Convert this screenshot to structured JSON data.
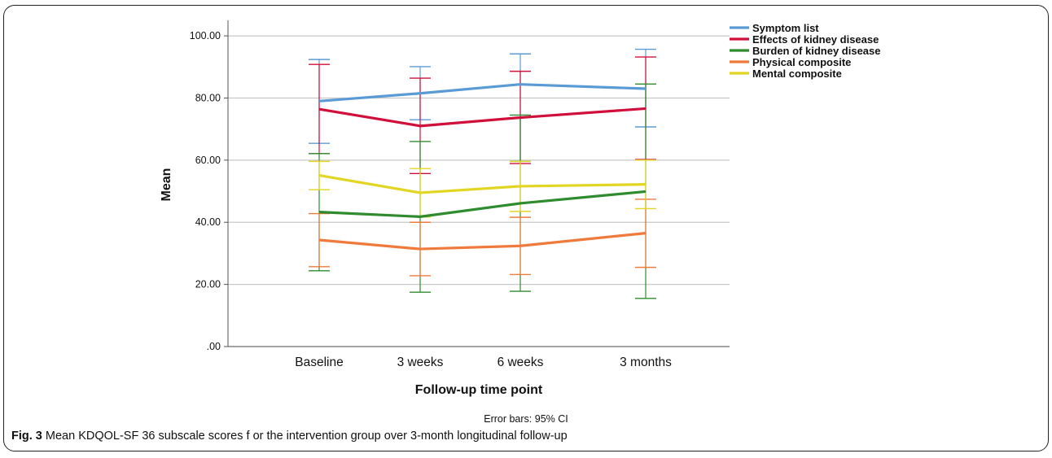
{
  "chart_data": {
    "type": "line",
    "categories": [
      "Baseline",
      "3 weeks",
      "6 weeks",
      "3 months"
    ],
    "xlabel": "Follow-up time point",
    "ylabel": "Mean",
    "ylim": [
      0,
      105
    ],
    "yticks": [
      0,
      20,
      40,
      60,
      80,
      100
    ],
    "ytick_labels": [
      ".00",
      "20.00",
      "40.00",
      "60.00",
      "80.00",
      "100.00"
    ],
    "grid": true,
    "legend_position": "top-right",
    "footnote": "Error bars: 95% CI",
    "series": [
      {
        "name": "Symptom list",
        "color": "#5b9bd5",
        "values": [
          79.0,
          81.5,
          84.4,
          83.0
        ],
        "ci_low": [
          65.4,
          73.0,
          59.6,
          70.7
        ],
        "ci_high": [
          92.4,
          90.1,
          94.2,
          95.7
        ]
      },
      {
        "name": "Effects of kidney disease",
        "color": "#d0103a",
        "values": [
          76.4,
          71.0,
          73.7,
          76.6
        ],
        "ci_low": [
          62.1,
          55.7,
          58.9,
          60.2
        ],
        "ci_high": [
          90.8,
          86.4,
          88.6,
          93.2
        ]
      },
      {
        "name": "Burden of kidney disease",
        "color": "#2e8b2e",
        "values": [
          43.3,
          41.8,
          46.1,
          49.9
        ],
        "ci_low": [
          24.4,
          17.5,
          17.8,
          15.5
        ],
        "ci_high": [
          62.1,
          66.0,
          74.5,
          84.5
        ]
      },
      {
        "name": "Physical composite",
        "color": "#ef7a3c",
        "values": [
          34.3,
          31.4,
          32.4,
          36.5
        ],
        "ci_low": [
          25.7,
          22.8,
          23.2,
          25.5
        ],
        "ci_high": [
          42.8,
          40.0,
          41.6,
          47.4
        ]
      },
      {
        "name": "Mental composite",
        "color": "#e2d622",
        "values": [
          55.1,
          49.5,
          51.6,
          52.2
        ],
        "ci_low": [
          50.5,
          41.7,
          43.5,
          44.4
        ],
        "ci_high": [
          59.6,
          57.3,
          59.6,
          60.0
        ]
      }
    ]
  },
  "caption": {
    "label": "Fig. 3",
    "text": "Mean KDQOL-SF 36 subscale scores f or the intervention group over 3-month longitudinal follow-up"
  }
}
